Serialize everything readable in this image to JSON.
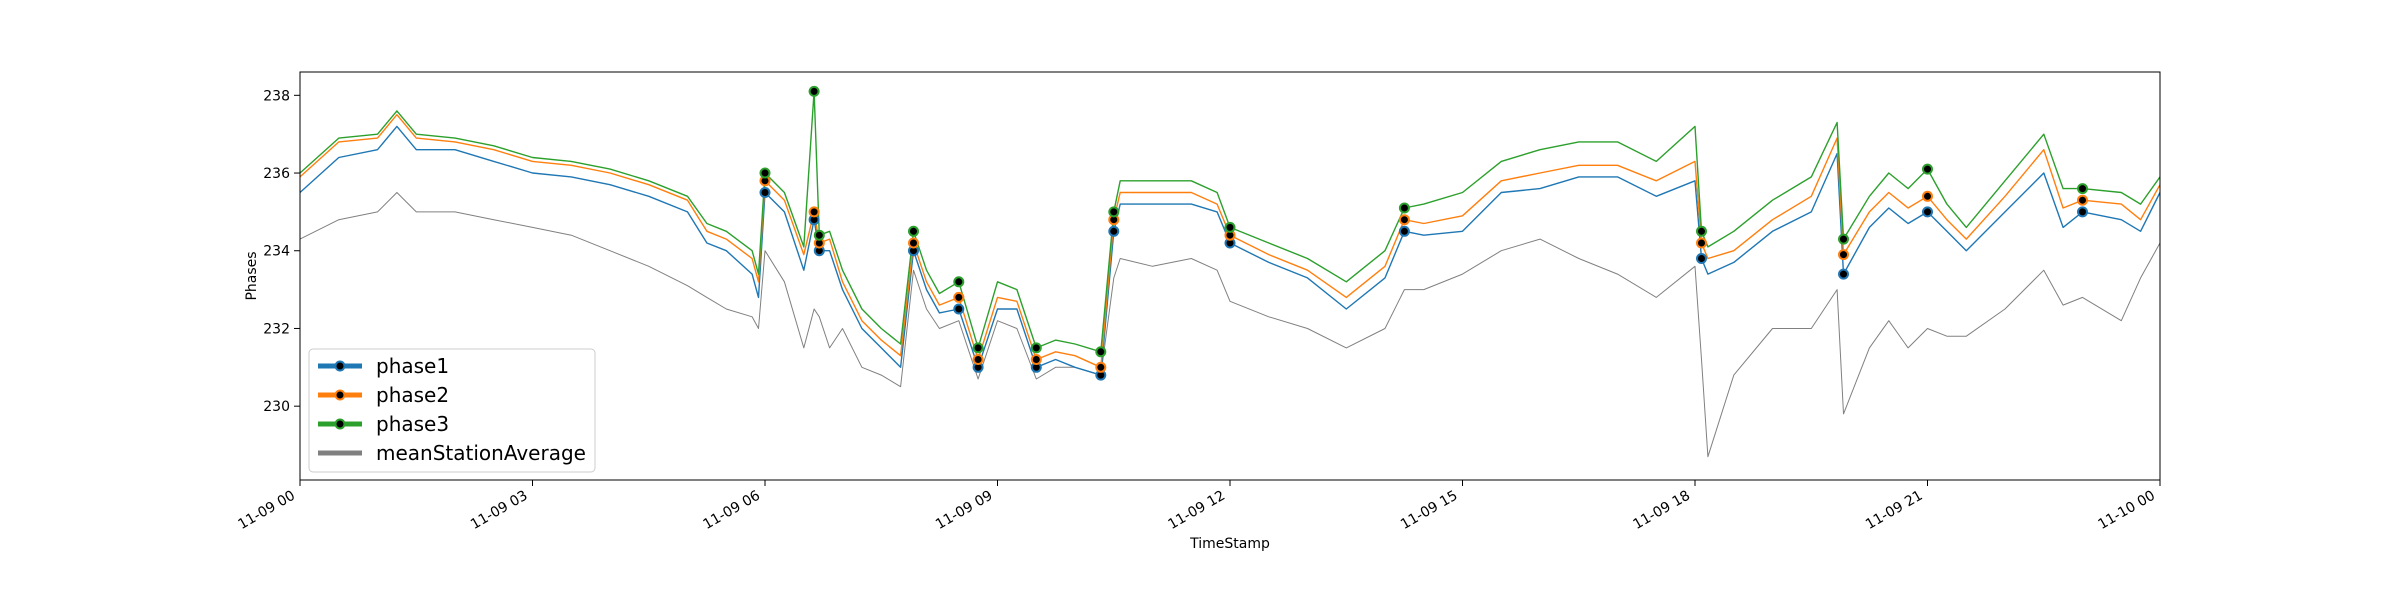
{
  "chart_data": {
    "type": "line",
    "title": "",
    "xlabel": "TimeStamp",
    "ylabel": "Phases",
    "xlim": [
      "11-09 00:00",
      "11-10 00:00"
    ],
    "ylim": [
      228.1,
      238.6
    ],
    "x_ticks": [
      "11-09 00",
      "11-09 03",
      "11-09 06",
      "11-09 09",
      "11-09 12",
      "11-09 15",
      "11-09 18",
      "11-09 21",
      "11-10 00"
    ],
    "y_ticks": [
      230,
      232,
      234,
      236,
      238
    ],
    "grid": false,
    "legend_position": "lower-left",
    "x": [
      "00:00",
      "00:30",
      "01:00",
      "01:15",
      "01:30",
      "02:00",
      "02:30",
      "03:00",
      "03:30",
      "04:00",
      "04:30",
      "05:00",
      "05:15",
      "05:30",
      "05:50",
      "05:55",
      "06:00",
      "06:15",
      "06:30",
      "06:38",
      "06:42",
      "06:50",
      "07:00",
      "07:15",
      "07:30",
      "07:45",
      "07:55",
      "08:05",
      "08:15",
      "08:30",
      "08:45",
      "09:00",
      "09:15",
      "09:30",
      "09:45",
      "10:00",
      "10:20",
      "10:30",
      "10:35",
      "11:00",
      "11:30",
      "11:50",
      "12:00",
      "12:30",
      "13:00",
      "13:30",
      "14:00",
      "14:15",
      "14:30",
      "15:00",
      "15:30",
      "16:00",
      "16:30",
      "17:00",
      "17:30",
      "18:00",
      "18:05",
      "18:10",
      "18:30",
      "19:00",
      "19:30",
      "19:50",
      "19:55",
      "20:15",
      "20:30",
      "20:45",
      "21:00",
      "21:15",
      "21:30",
      "22:00",
      "22:30",
      "22:45",
      "23:00",
      "23:30",
      "23:45",
      "24:00"
    ],
    "series": [
      {
        "name": "phase1",
        "color": "#1f77b4",
        "values": [
          235.5,
          236.4,
          236.6,
          237.2,
          236.6,
          236.6,
          236.3,
          236.0,
          235.9,
          235.7,
          235.4,
          235.0,
          234.2,
          234.0,
          233.4,
          232.8,
          235.5,
          235.0,
          233.5,
          234.8,
          234.0,
          234.0,
          233.0,
          232.0,
          231.5,
          231.0,
          234.0,
          233.0,
          232.4,
          232.5,
          231.0,
          232.5,
          232.5,
          231.0,
          231.2,
          231.0,
          230.8,
          234.5,
          235.2,
          235.2,
          235.2,
          235.0,
          234.2,
          233.7,
          233.3,
          232.5,
          233.3,
          234.5,
          234.4,
          234.5,
          235.5,
          235.6,
          235.9,
          235.9,
          235.4,
          235.8,
          233.8,
          233.4,
          233.7,
          234.5,
          235.0,
          236.5,
          233.4,
          234.6,
          235.1,
          234.7,
          235.0,
          234.5,
          234.0,
          235.0,
          236.0,
          234.6,
          235.0,
          234.8,
          234.5,
          235.5
        ]
      },
      {
        "name": "phase2",
        "color": "#ff7f0e",
        "values": [
          235.9,
          236.8,
          236.9,
          237.5,
          236.9,
          236.8,
          236.6,
          236.3,
          236.2,
          236.0,
          235.7,
          235.3,
          234.5,
          234.3,
          233.8,
          233.2,
          235.8,
          235.3,
          233.9,
          235.0,
          234.2,
          234.3,
          233.2,
          232.2,
          231.7,
          231.3,
          234.2,
          233.2,
          232.6,
          232.8,
          231.2,
          232.8,
          232.7,
          231.2,
          231.4,
          231.3,
          231.0,
          234.8,
          235.5,
          235.5,
          235.5,
          235.2,
          234.4,
          233.9,
          233.5,
          232.8,
          233.6,
          234.8,
          234.7,
          234.9,
          235.8,
          236.0,
          236.2,
          236.2,
          235.8,
          236.3,
          234.2,
          233.8,
          234.0,
          234.8,
          235.4,
          236.9,
          233.9,
          235.0,
          235.5,
          235.1,
          235.4,
          234.8,
          234.3,
          235.4,
          236.6,
          235.1,
          235.3,
          235.2,
          234.8,
          235.7
        ]
      },
      {
        "name": "phase3",
        "color": "#2ca02c",
        "values": [
          236.0,
          236.9,
          237.0,
          237.6,
          237.0,
          236.9,
          236.7,
          236.4,
          236.3,
          236.1,
          235.8,
          235.4,
          234.7,
          234.5,
          234.0,
          233.4,
          236.0,
          235.5,
          234.1,
          238.1,
          234.4,
          234.5,
          233.5,
          232.5,
          232.0,
          231.6,
          234.5,
          233.5,
          232.9,
          233.2,
          231.5,
          233.2,
          233.0,
          231.5,
          231.7,
          231.6,
          231.4,
          235.0,
          235.8,
          235.8,
          235.8,
          235.5,
          234.6,
          234.2,
          233.8,
          233.2,
          234.0,
          235.1,
          235.2,
          235.5,
          236.3,
          236.6,
          236.8,
          236.8,
          236.3,
          237.2,
          234.5,
          234.1,
          234.5,
          235.3,
          235.9,
          237.3,
          234.3,
          235.4,
          236.0,
          235.6,
          236.1,
          235.2,
          234.6,
          235.8,
          237.0,
          235.6,
          235.6,
          235.5,
          235.2,
          235.9
        ]
      },
      {
        "name": "meanStationAverage",
        "color": "#808080",
        "values": [
          234.3,
          234.8,
          235.0,
          235.5,
          235.0,
          235.0,
          234.8,
          234.6,
          234.4,
          234.0,
          233.6,
          233.1,
          232.8,
          232.5,
          232.3,
          232.0,
          234.0,
          233.2,
          231.5,
          232.5,
          232.3,
          231.5,
          232.0,
          231.0,
          230.8,
          230.5,
          233.5,
          232.5,
          232.0,
          232.2,
          230.7,
          232.2,
          232.0,
          230.7,
          231.0,
          231.0,
          230.8,
          233.3,
          233.8,
          233.6,
          233.8,
          233.5,
          232.7,
          232.3,
          232.0,
          231.5,
          232.0,
          233.0,
          233.0,
          233.4,
          234.0,
          234.3,
          233.8,
          233.4,
          232.8,
          233.6,
          231.2,
          228.7,
          230.8,
          232.0,
          232.0,
          233.0,
          229.8,
          231.5,
          232.2,
          231.5,
          232.0,
          231.8,
          231.8,
          232.5,
          233.5,
          232.6,
          232.8,
          232.2,
          233.3,
          234.2
        ]
      }
    ]
  }
}
